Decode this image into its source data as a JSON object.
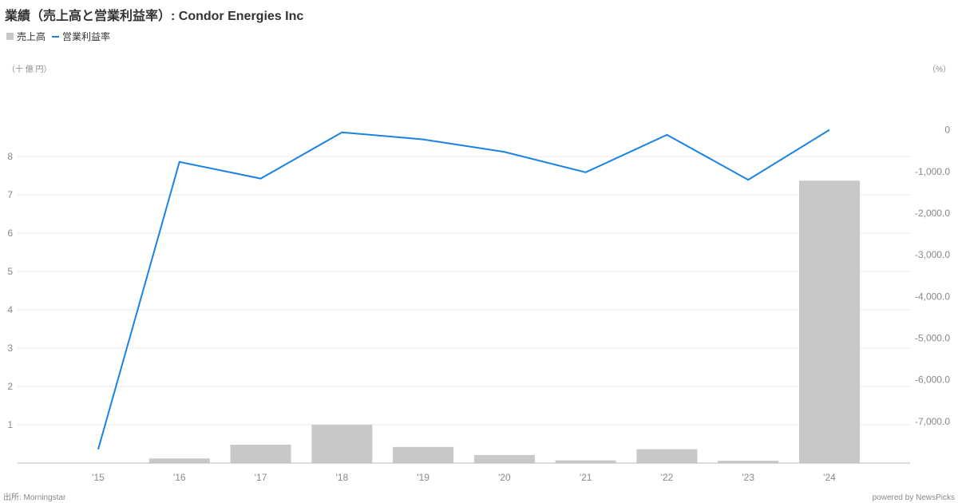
{
  "title": "業績（売上高と営業利益率）: Condor Energies Inc",
  "legend": {
    "bar_label": "売上高",
    "line_label": "営業利益率"
  },
  "units": {
    "left": "（十 億 円）",
    "right": "（%）"
  },
  "footer": {
    "source": "出所: Morningstar",
    "powered": "powered by NewsPicks"
  },
  "colors": {
    "bar": "#c8c8c8",
    "line": "#1a82e2",
    "grid": "#e8e8e8",
    "axis": "#bbbbbb"
  },
  "chart_data": {
    "type": "bar",
    "title": "業績（売上高と営業利益率）: Condor Energies Inc",
    "categories": [
      "'15",
      "'16",
      "'17",
      "'18",
      "'19",
      "'20",
      "'21",
      "'22",
      "'23",
      "'24"
    ],
    "series": [
      {
        "name": "売上高",
        "type": "bar",
        "axis": "left",
        "values": [
          0.01,
          0.12,
          0.48,
          1.0,
          0.42,
          0.21,
          0.07,
          0.36,
          0.06,
          7.37
        ]
      },
      {
        "name": "営業利益率",
        "type": "line",
        "axis": "right",
        "values": [
          -7670,
          -770,
          -1170,
          -60,
          -230,
          -530,
          -1020,
          -120,
          -1200,
          0
        ]
      }
    ],
    "y_left": {
      "ylim": [
        0,
        10
      ],
      "ticks": [
        1,
        2,
        3,
        4,
        5,
        6,
        7,
        8
      ],
      "tick_labels": [
        "1",
        "2",
        "3",
        "4",
        "5",
        "6",
        "7",
        "8"
      ]
    },
    "y_right": {
      "ylim": [
        -8000,
        1200
      ],
      "ticks": [
        0,
        -1000,
        -2000,
        -3000,
        -4000,
        -5000,
        -6000,
        -7000
      ],
      "tick_labels": [
        "0",
        "-1,000.0",
        "-2,000.0",
        "-3,000.0",
        "-4,000.0",
        "-5,000.0",
        "-6,000.0",
        "-7,000.0"
      ]
    },
    "grid": true,
    "legend_position": "top-left"
  }
}
